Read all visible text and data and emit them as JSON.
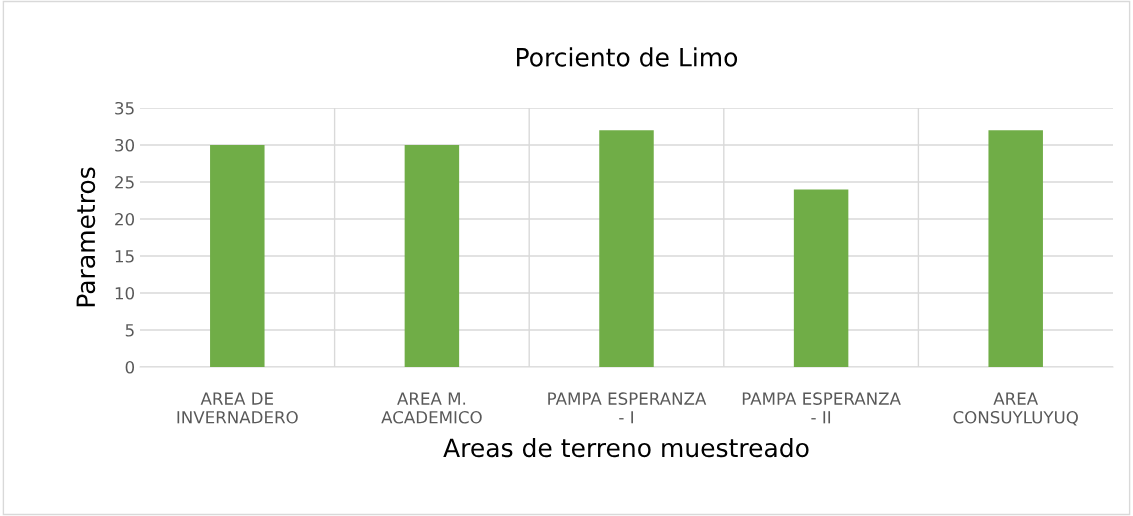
{
  "chart_data": {
    "type": "bar",
    "title": "Porciento de Limo",
    "xlabel": "Areas de terreno muestreado",
    "ylabel": "Parametros",
    "categories": [
      "AREA DE\nINVERNADERO",
      "AREA M.\nACADEMICO",
      "PAMPA ESPERANZA\n- I",
      "PAMPA ESPERANZA\n- II",
      "AREA\nCONSUYLUYUQ"
    ],
    "values": [
      30,
      30,
      32,
      24,
      32
    ],
    "color": "#70ad47",
    "ylim": [
      0,
      35
    ],
    "yticks": [
      0,
      5,
      10,
      15,
      20,
      25,
      30,
      35
    ],
    "grid": true,
    "legend": false
  }
}
